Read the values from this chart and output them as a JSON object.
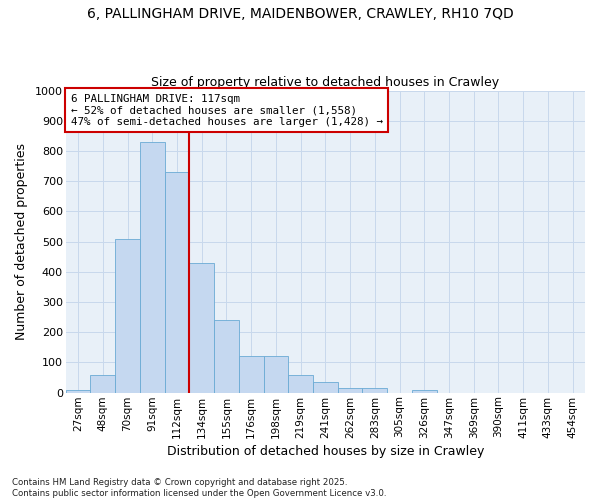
{
  "title1": "6, PALLINGHAM DRIVE, MAIDENBOWER, CRAWLEY, RH10 7QD",
  "title2": "Size of property relative to detached houses in Crawley",
  "xlabel": "Distribution of detached houses by size in Crawley",
  "ylabel": "Number of detached properties",
  "categories": [
    "27sqm",
    "48sqm",
    "70sqm",
    "91sqm",
    "112sqm",
    "134sqm",
    "155sqm",
    "176sqm",
    "198sqm",
    "219sqm",
    "241sqm",
    "262sqm",
    "283sqm",
    "305sqm",
    "326sqm",
    "347sqm",
    "369sqm",
    "390sqm",
    "411sqm",
    "433sqm",
    "454sqm"
  ],
  "values": [
    10,
    60,
    510,
    830,
    730,
    430,
    240,
    120,
    120,
    60,
    35,
    15,
    15,
    0,
    10,
    0,
    0,
    0,
    0,
    0,
    0
  ],
  "bar_color": "#c5d8f0",
  "bar_edge_color": "#6aaad4",
  "vline_color": "#cc0000",
  "annotation_text": "6 PALLINGHAM DRIVE: 117sqm\n← 52% of detached houses are smaller (1,558)\n47% of semi-detached houses are larger (1,428) →",
  "annotation_box_color": "#cc0000",
  "annotation_bg": "#ffffff",
  "ylim": [
    0,
    1000
  ],
  "yticks": [
    0,
    100,
    200,
    300,
    400,
    500,
    600,
    700,
    800,
    900,
    1000
  ],
  "grid_color": "#c8d8ec",
  "bg_color": "#e8f0f8",
  "footnote1": "Contains HM Land Registry data © Crown copyright and database right 2025.",
  "footnote2": "Contains public sector information licensed under the Open Government Licence v3.0."
}
